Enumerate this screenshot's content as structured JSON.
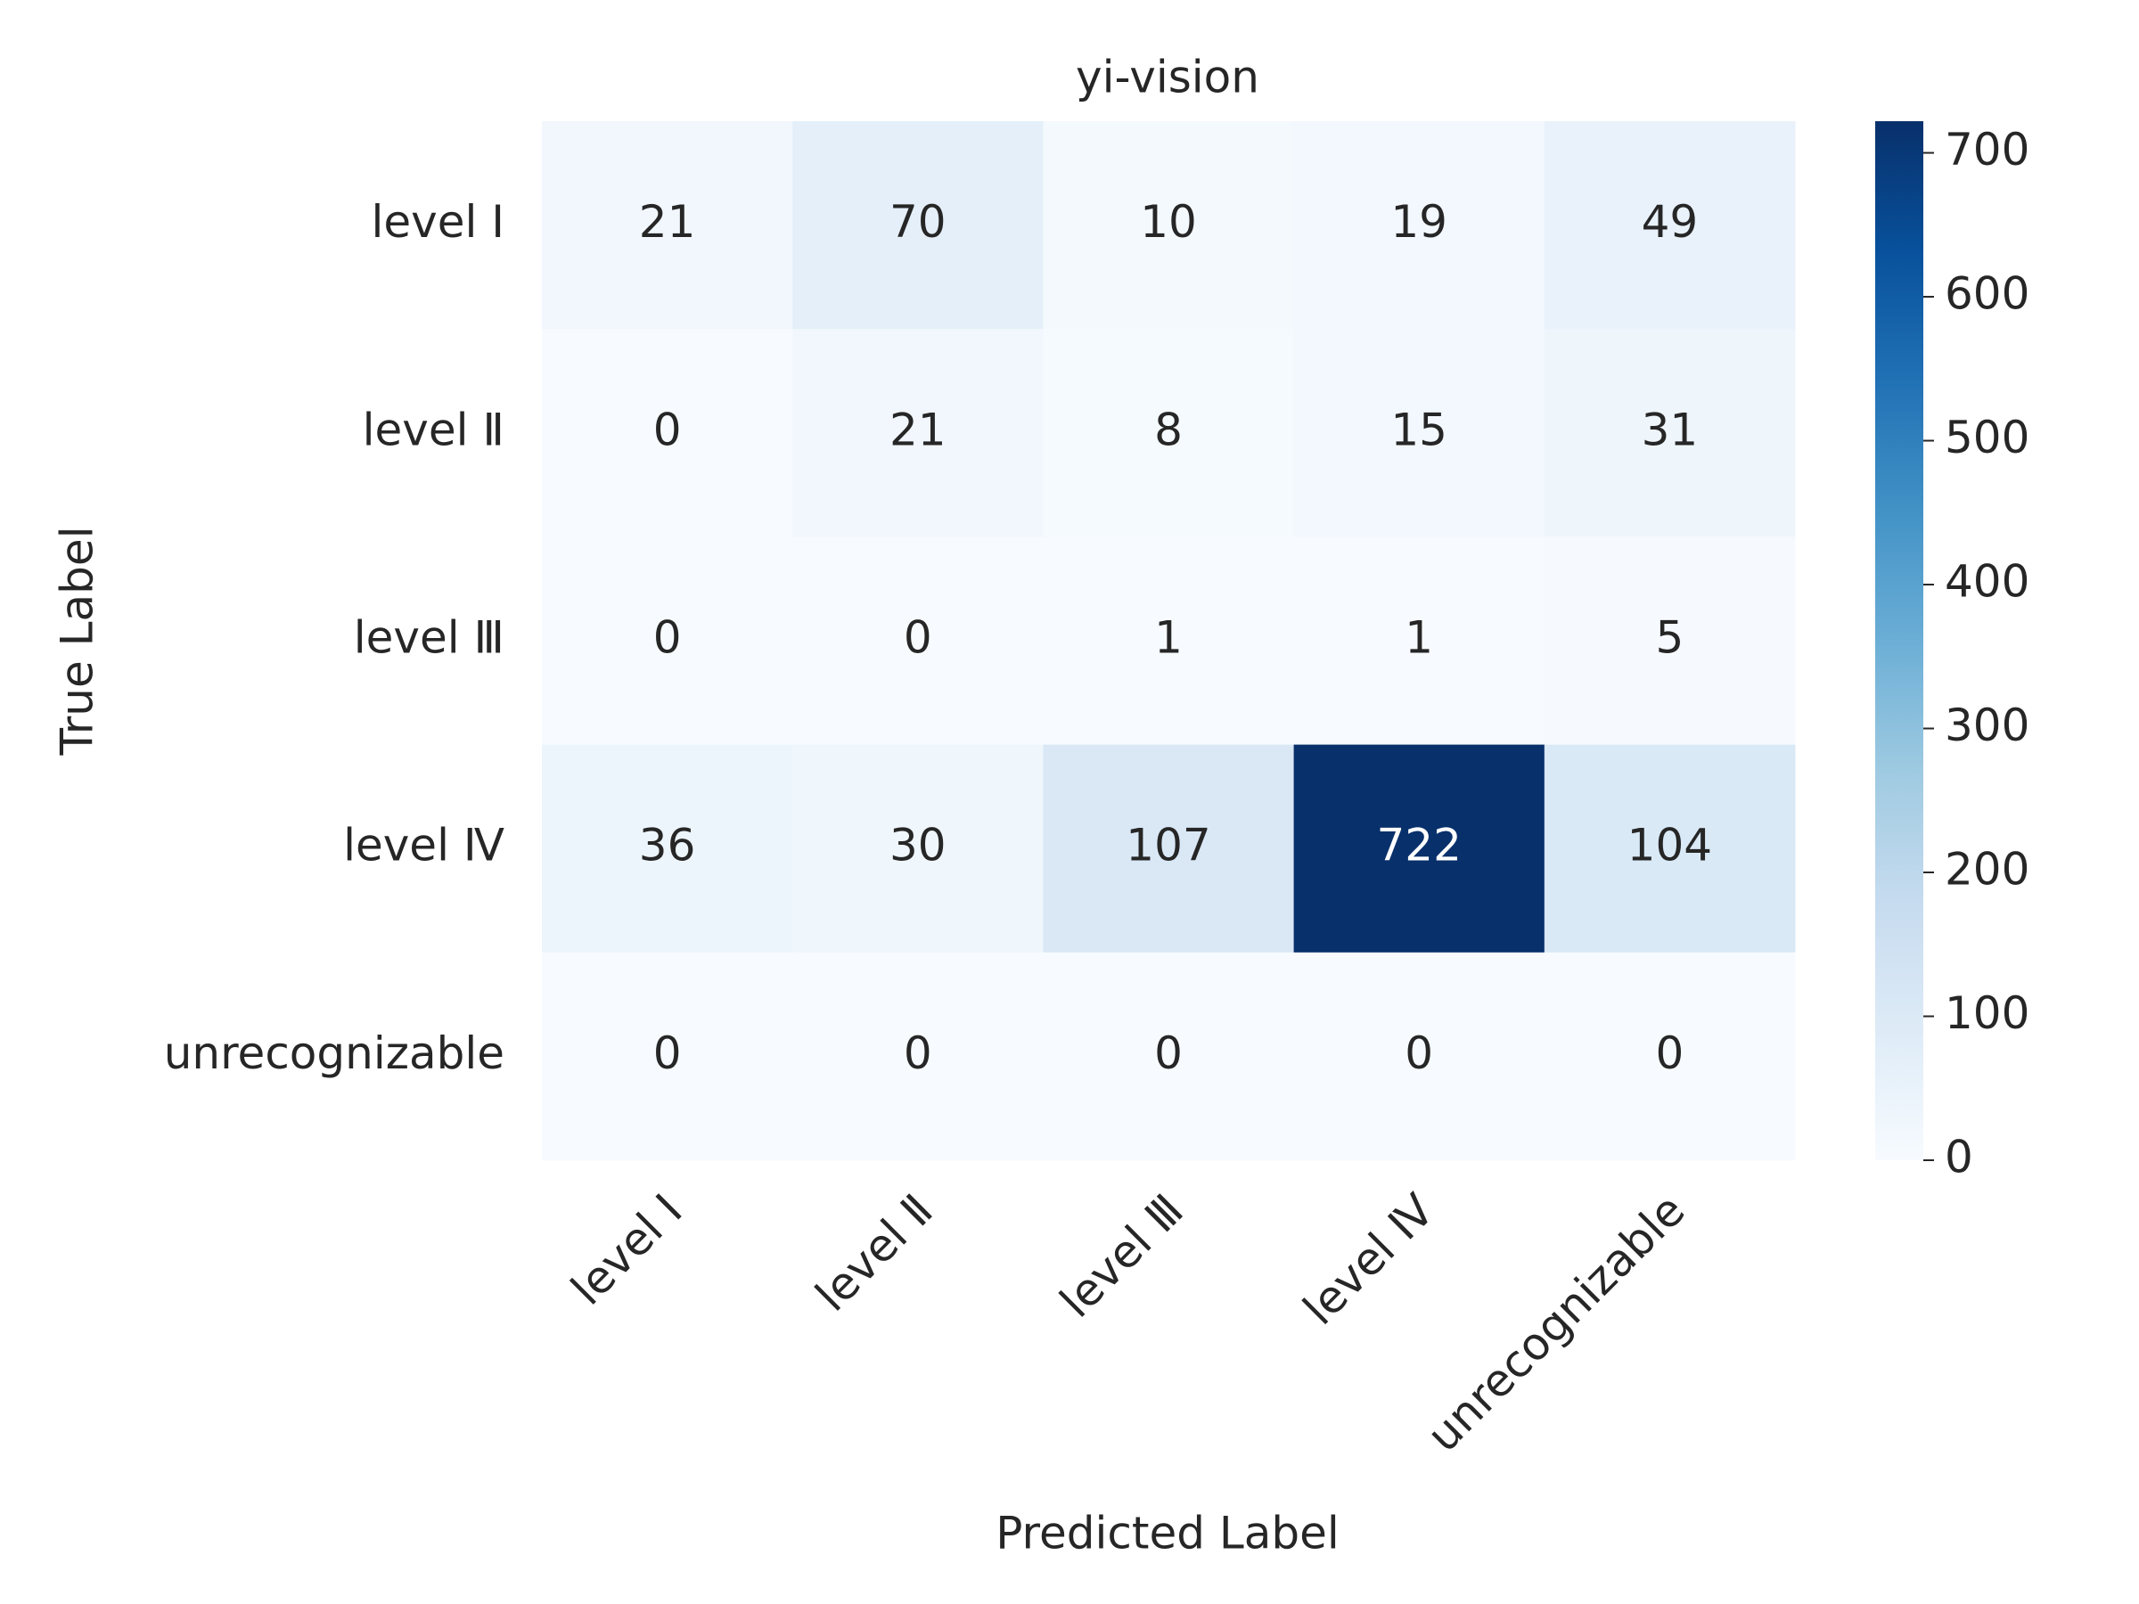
{
  "chart_data": {
    "type": "heatmap",
    "title": "yi-vision",
    "xlabel": "Predicted Label",
    "ylabel": "True Label",
    "x_categories": [
      "level Ⅰ",
      "level Ⅱ",
      "level Ⅲ",
      "level Ⅳ",
      "unrecognizable"
    ],
    "y_categories": [
      "level Ⅰ",
      "level Ⅱ",
      "level Ⅲ",
      "level Ⅳ",
      "unrecognizable"
    ],
    "values": [
      [
        21,
        70,
        10,
        19,
        49
      ],
      [
        0,
        21,
        8,
        15,
        31
      ],
      [
        0,
        0,
        1,
        1,
        5
      ],
      [
        36,
        30,
        107,
        722,
        104
      ],
      [
        0,
        0,
        0,
        0,
        0
      ]
    ],
    "colormap": [
      "#f7fbff",
      "#deebf7",
      "#c6dbef",
      "#9ecae1",
      "#6baed6",
      "#4292c6",
      "#2171b5",
      "#08519c",
      "#08306b"
    ],
    "clim": [
      0,
      722
    ],
    "cticks": [
      0,
      100,
      200,
      300,
      400,
      500,
      600,
      700
    ]
  }
}
